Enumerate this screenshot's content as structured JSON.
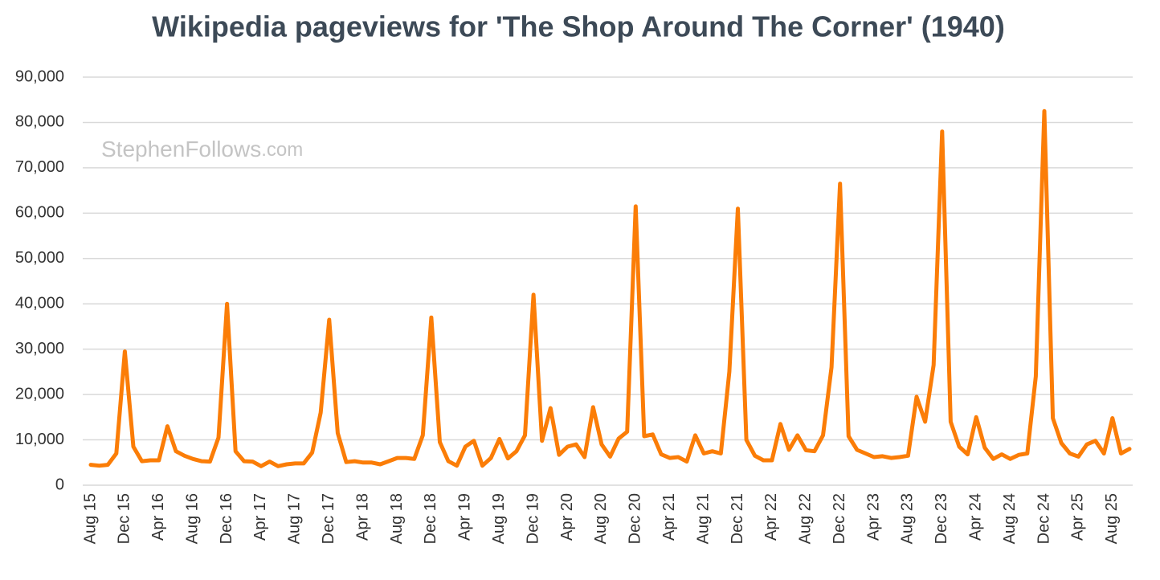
{
  "chart_data": {
    "type": "line",
    "title": "Wikipedia pageviews for 'The Shop Around The Corner' (1940)",
    "watermark": {
      "name": "StephenFollows",
      "domain": ".com"
    },
    "categories": [
      "Aug 15",
      null,
      null,
      null,
      "Dec 15",
      null,
      null,
      null,
      "Apr 16",
      null,
      null,
      null,
      "Aug 16",
      null,
      null,
      null,
      "Dec 16",
      null,
      null,
      null,
      "Apr 17",
      null,
      null,
      null,
      "Aug 17",
      null,
      null,
      null,
      "Dec 17",
      null,
      null,
      null,
      "Apr 18",
      null,
      null,
      null,
      "Aug 18",
      null,
      null,
      null,
      "Dec 18",
      null,
      null,
      null,
      "Apr 19",
      null,
      null,
      null,
      "Aug 19",
      null,
      null,
      null,
      "Dec 19",
      null,
      null,
      null,
      "Apr 20",
      null,
      null,
      null,
      "Aug 20",
      null,
      null,
      null,
      "Dec 20",
      null,
      null,
      null,
      "Apr 21",
      null,
      null,
      null,
      "Aug 21",
      null,
      null,
      null,
      "Dec 21",
      null,
      null,
      null,
      "Apr 22",
      null,
      null,
      null,
      "Aug 22",
      null,
      null,
      null,
      "Dec 22",
      null,
      null,
      null,
      "Apr 23",
      null,
      null,
      null,
      "Aug 23",
      null,
      null,
      null,
      "Dec 23",
      null,
      null,
      null,
      "Apr 24",
      null,
      null,
      null,
      "Aug 24",
      null,
      null,
      null,
      "Dec 24",
      null,
      null,
      null,
      "Apr 25",
      null,
      null,
      null,
      "Aug 25",
      null,
      null
    ],
    "values": [
      4500,
      4300,
      4500,
      7000,
      29500,
      8500,
      5300,
      5500,
      5500,
      13000,
      7500,
      6500,
      5800,
      5300,
      5200,
      10500,
      40000,
      7500,
      5300,
      5200,
      4200,
      5200,
      4200,
      4600,
      4800,
      4800,
      7200,
      16000,
      36500,
      11500,
      5100,
      5300,
      5000,
      5000,
      4600,
      5300,
      6000,
      6000,
      5800,
      11000,
      37000,
      9500,
      5300,
      4300,
      8500,
      9800,
      4300,
      6000,
      10200,
      5900,
      7500,
      11000,
      42000,
      9800,
      17000,
      6700,
      8500,
      9000,
      6200,
      17200,
      9000,
      6300,
      10300,
      11800,
      61500,
      10800,
      11200,
      6800,
      6000,
      6200,
      5200,
      11000,
      7000,
      7500,
      7000,
      25000,
      61000,
      10000,
      6500,
      5500,
      5500,
      13500,
      7800,
      11000,
      7700,
      7500,
      11000,
      26000,
      66500,
      10800,
      7800,
      7000,
      6200,
      6400,
      6000,
      6200,
      6500,
      19500,
      14000,
      26500,
      78000,
      14000,
      8500,
      6800,
      15000,
      8300,
      5800,
      6800,
      5800,
      6700,
      7000,
      24000,
      82500,
      14800,
      9300,
      7000,
      6300,
      9000,
      9800,
      7000,
      14800,
      7000,
      8000
    ],
    "color": "#fb7d07",
    "ylim": [
      0,
      90000
    ],
    "yticks": [
      0,
      {
        "value": 10000,
        "label": "10,000"
      },
      {
        "value": 20000,
        "label": "20,000"
      },
      {
        "value": 30000,
        "label": "30,000"
      },
      {
        "value": 40000,
        "label": "40,000"
      },
      {
        "value": 50000,
        "label": "50,000"
      },
      {
        "value": 60000,
        "label": "60,000"
      },
      {
        "value": 70000,
        "label": "70,000"
      },
      {
        "value": 80000,
        "label": "80,000"
      },
      {
        "value": 90000,
        "label": "90,000"
      }
    ],
    "grid": true
  }
}
